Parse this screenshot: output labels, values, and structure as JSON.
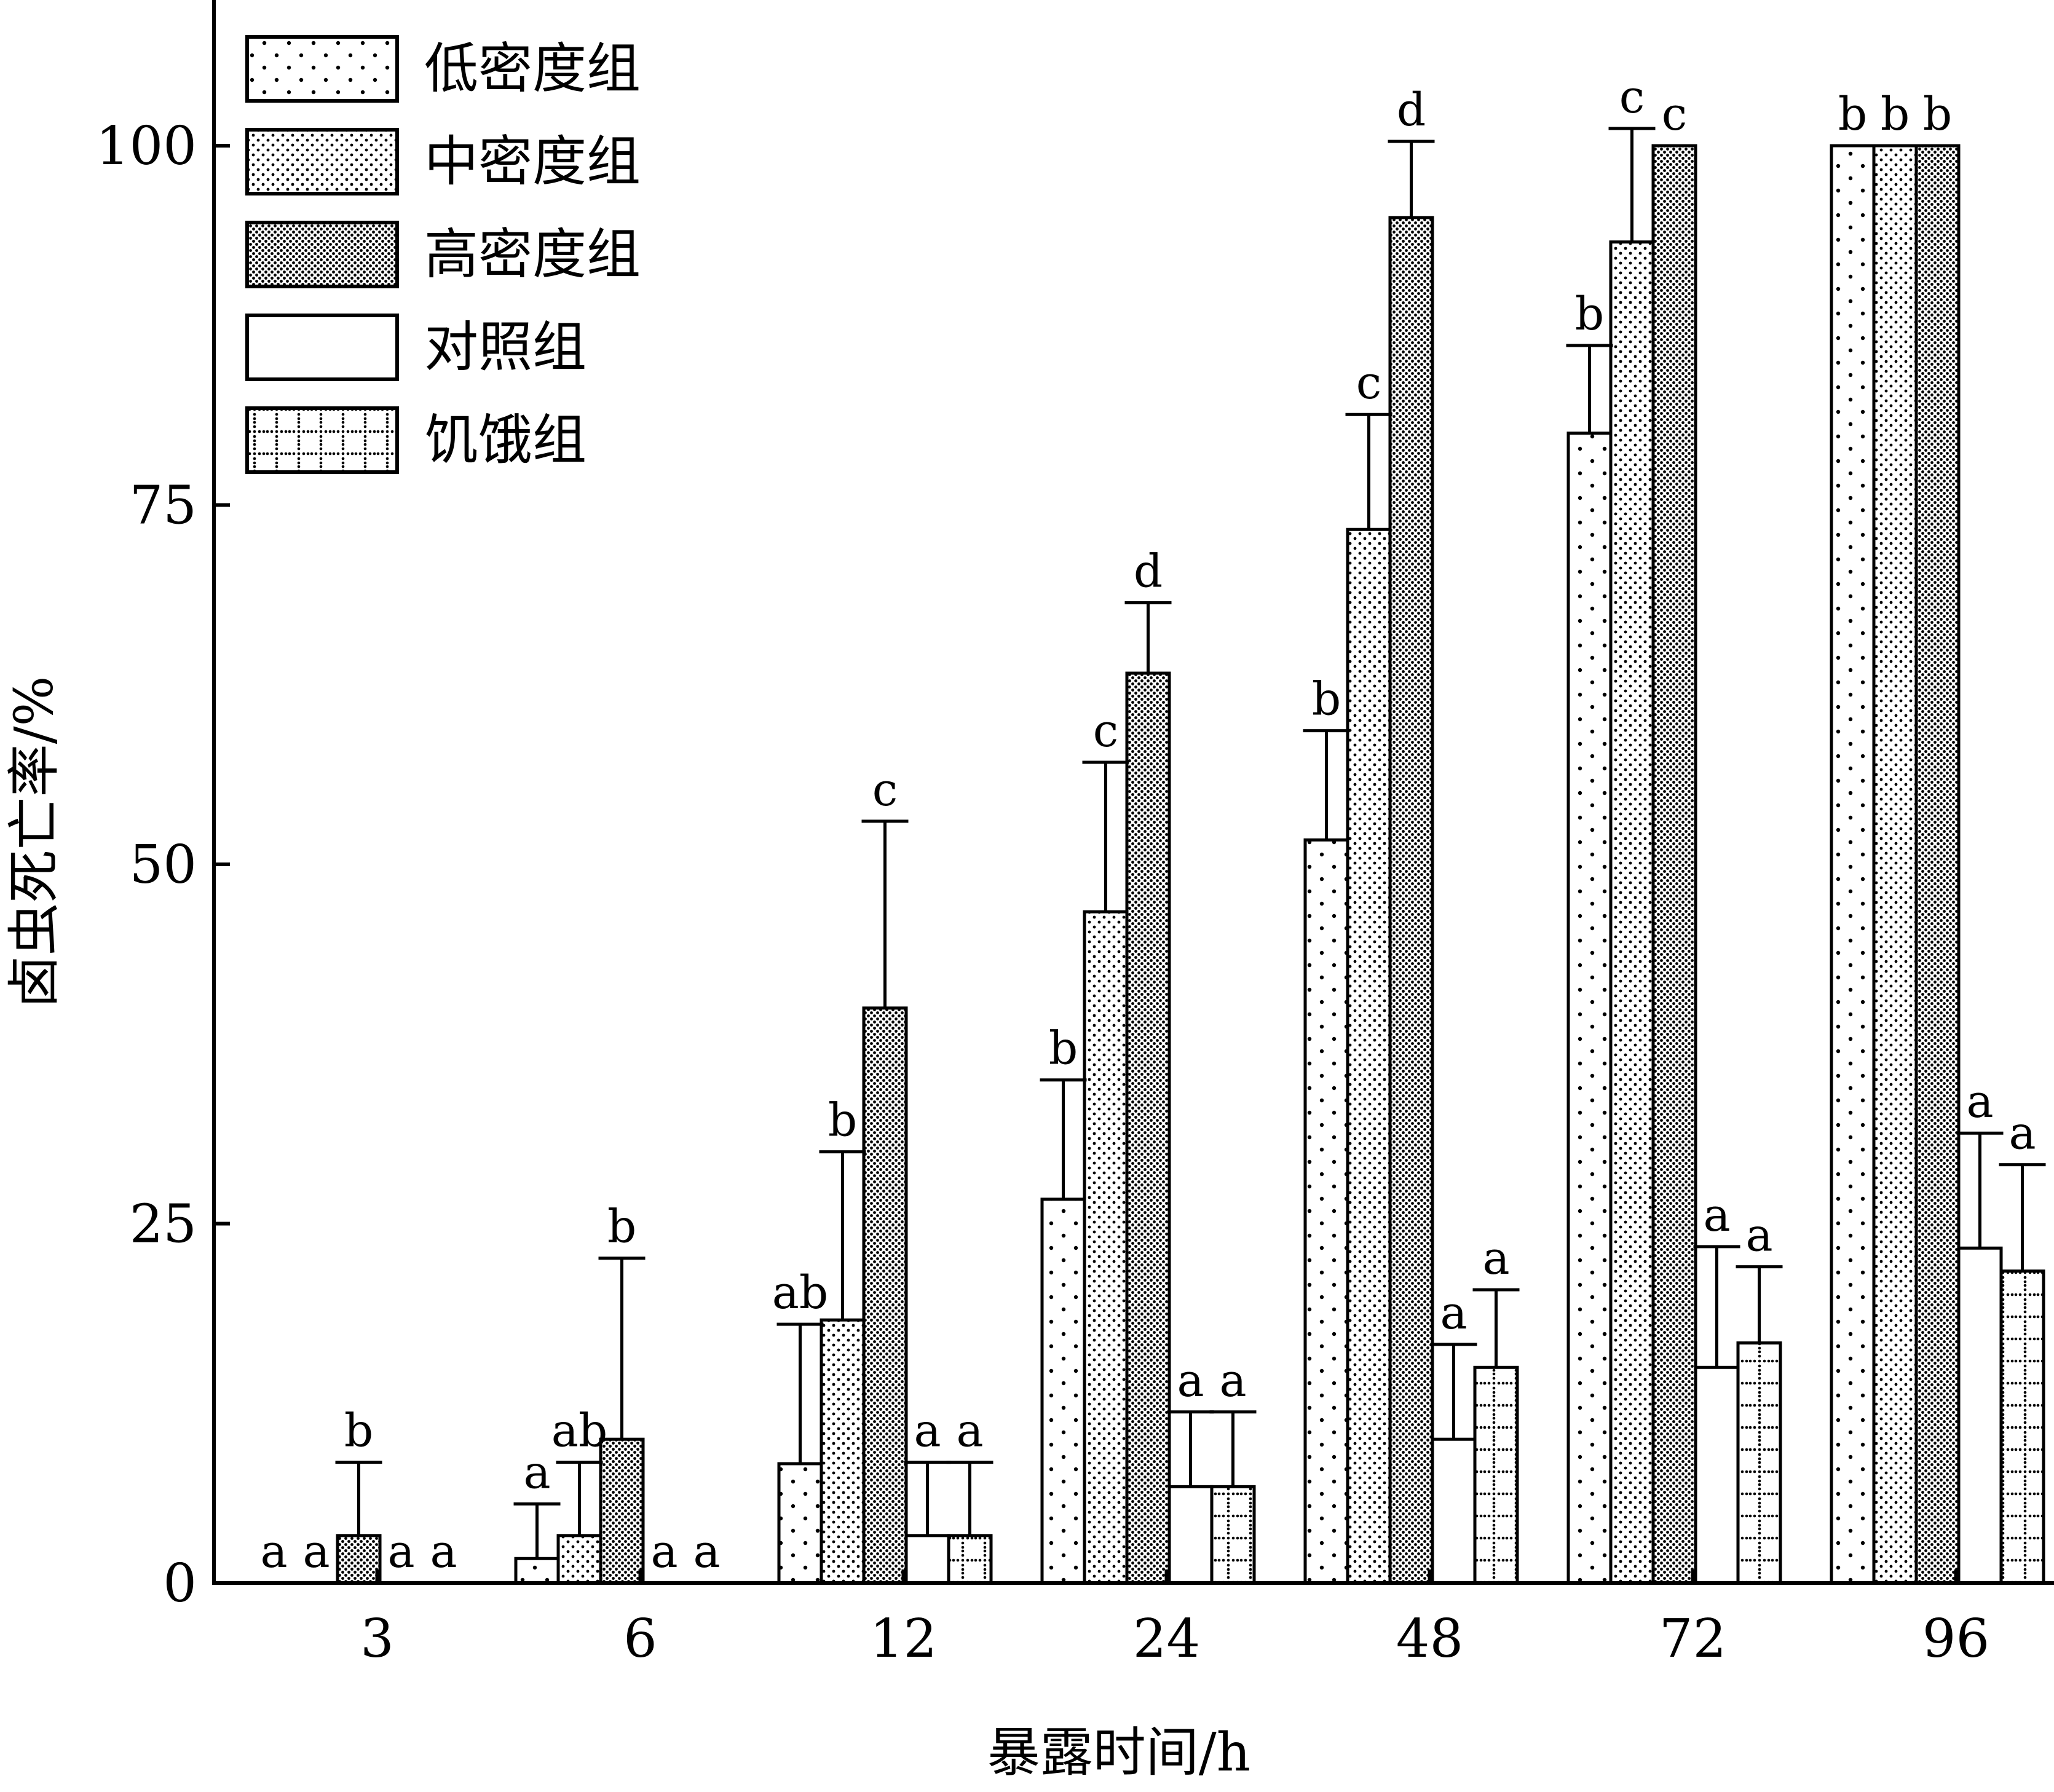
{
  "chart_data": {
    "type": "bar",
    "xlabel": "暴露时间/h",
    "ylabel": "卤虫死亡率/%",
    "ylim": [
      0,
      100
    ],
    "yticks": [
      0,
      25,
      50,
      75,
      100
    ],
    "categories": [
      "3",
      "6",
      "12",
      "24",
      "48",
      "72",
      "96"
    ],
    "legend_position": "top-left",
    "series": [
      {
        "name": "低密度组",
        "pattern": "sparse-dots",
        "values": [
          0,
          1.7,
          8.3,
          26.7,
          51.7,
          80,
          100
        ],
        "errors": [
          0,
          3.8,
          9.7,
          8.3,
          7.6,
          6.1,
          0
        ],
        "letters": [
          "a",
          "a",
          "ab",
          "b",
          "b",
          "b",
          "b"
        ]
      },
      {
        "name": "中密度组",
        "pattern": "medium-dots",
        "values": [
          0,
          3.3,
          18.3,
          46.7,
          73.3,
          93.3,
          100
        ],
        "errors": [
          0,
          5.1,
          11.7,
          10.4,
          8.0,
          7.9,
          0
        ],
        "letters": [
          "a",
          "ab",
          "b",
          "c",
          "c",
          "c",
          "b"
        ]
      },
      {
        "name": "高密度组",
        "pattern": "dense-dots",
        "values": [
          3.3,
          10,
          40,
          63.3,
          95,
          100,
          100
        ],
        "errors": [
          5.1,
          12.6,
          13.0,
          4.9,
          5.3,
          0,
          0
        ],
        "letters": [
          "b",
          "b",
          "c",
          "d",
          "d",
          "c",
          "b"
        ]
      },
      {
        "name": "对照组",
        "pattern": "blank",
        "values": [
          0,
          0,
          3.3,
          6.7,
          10,
          15,
          23.3
        ],
        "errors": [
          0,
          0,
          5.1,
          5.2,
          6.6,
          8.4,
          8.0
        ],
        "letters": [
          "a",
          "a",
          "a",
          "a",
          "a",
          "a",
          "a"
        ]
      },
      {
        "name": "饥饿组",
        "pattern": "grid-dots",
        "values": [
          0,
          0,
          3.3,
          6.7,
          15,
          16.7,
          21.7
        ],
        "errors": [
          0,
          0,
          5.1,
          5.2,
          5.4,
          5.3,
          7.4
        ],
        "letters": [
          "a",
          "a",
          "a",
          "a",
          "a",
          "a",
          "a"
        ]
      }
    ]
  }
}
